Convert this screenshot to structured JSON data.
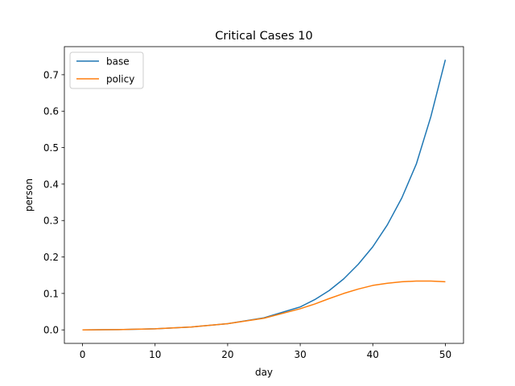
{
  "chart_data": {
    "type": "line",
    "title": "Critical Cases 10",
    "xlabel": "day",
    "ylabel": "person",
    "xlim": [
      -2.5,
      52.5
    ],
    "ylim": [
      -0.037,
      0.777
    ],
    "xticks": [
      0,
      10,
      20,
      30,
      40,
      50
    ],
    "yticks": [
      0.0,
      0.1,
      0.2,
      0.3,
      0.4,
      0.5,
      0.6,
      0.7
    ],
    "grid": false,
    "legend_position": "top-left",
    "series": [
      {
        "name": "base",
        "color": "#1f77b4",
        "x": [
          0,
          5,
          10,
          15,
          20,
          25,
          30,
          32,
          34,
          36,
          38,
          40,
          42,
          44,
          46,
          48,
          50
        ],
        "values": [
          0.0,
          0.0008,
          0.003,
          0.008,
          0.017,
          0.033,
          0.063,
          0.083,
          0.108,
          0.14,
          0.18,
          0.228,
          0.288,
          0.362,
          0.455,
          0.585,
          0.741
        ]
      },
      {
        "name": "policy",
        "color": "#ff7f0e",
        "x": [
          0,
          5,
          10,
          15,
          20,
          25,
          30,
          32,
          34,
          36,
          38,
          40,
          42,
          44,
          46,
          48,
          50
        ],
        "values": [
          0.0,
          0.0008,
          0.003,
          0.008,
          0.017,
          0.032,
          0.058,
          0.071,
          0.086,
          0.1,
          0.112,
          0.122,
          0.128,
          0.132,
          0.134,
          0.134,
          0.132
        ]
      }
    ]
  }
}
